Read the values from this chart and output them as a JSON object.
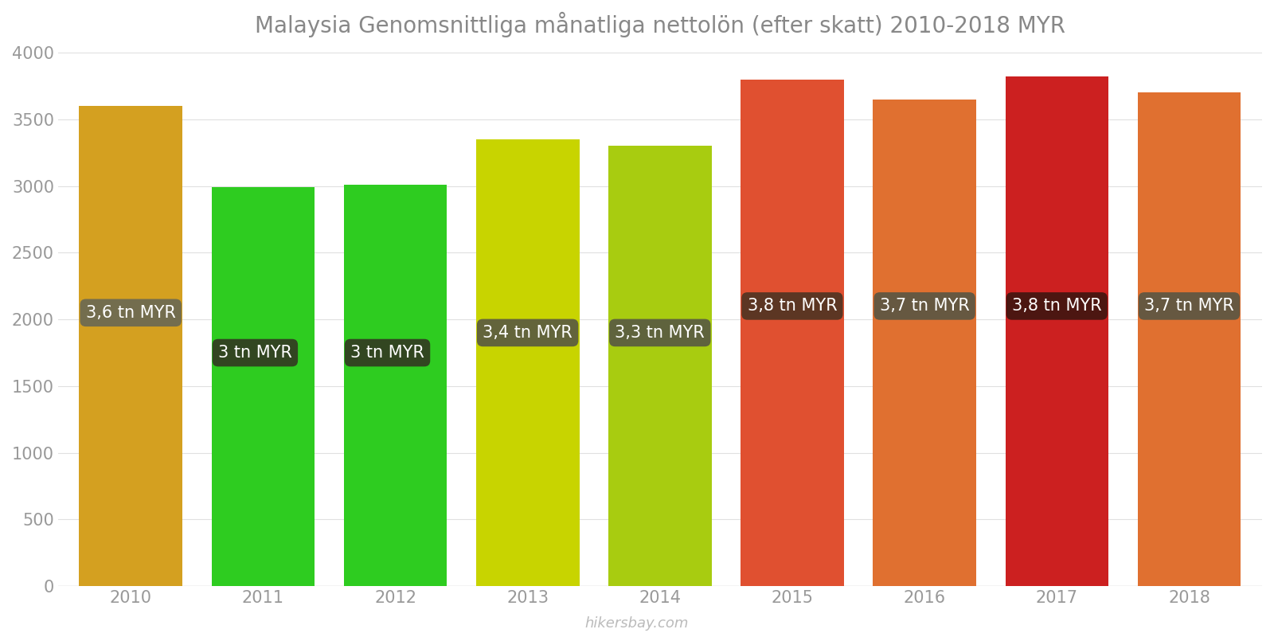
{
  "title": "Malaysia Genomsnittliga månatliga nettolön (efter skatt) 2010-2018 MYR",
  "years": [
    2010,
    2011,
    2012,
    2013,
    2014,
    2015,
    2016,
    2017,
    2018
  ],
  "values": [
    3600,
    2990,
    3010,
    3350,
    3300,
    3800,
    3650,
    3820,
    3700
  ],
  "labels": [
    "3,6 tn MYR",
    "3 tn MYR",
    "3 tn MYR",
    "3,4 tn MYR",
    "3,3 tn MYR",
    "3,8 tn MYR",
    "3,7 tn MYR",
    "3,8 tn MYR",
    "3,7 tn MYR"
  ],
  "bar_colors": [
    "#D4A020",
    "#2ECC20",
    "#2ECC20",
    "#C8D400",
    "#A8CC10",
    "#E05030",
    "#E07030",
    "#CC2020",
    "#E07030"
  ],
  "label_box_colors": [
    "#666655",
    "#333322",
    "#333322",
    "#555544",
    "#555544",
    "#4A3322",
    "#555544",
    "#3A1510",
    "#555544"
  ],
  "ylim": [
    0,
    4000
  ],
  "yticks": [
    0,
    500,
    1000,
    1500,
    2000,
    2500,
    3000,
    3500,
    4000
  ],
  "label_y_positions": [
    2050,
    1750,
    1750,
    1900,
    1900,
    2100,
    2100,
    2100,
    2100
  ],
  "watermark": "hikersbay.com",
  "background_color": "#ffffff",
  "label_text_color": "#ffffff",
  "title_color": "#888888",
  "tick_color": "#999999",
  "bar_width": 0.78,
  "title_fontsize": 20,
  "label_fontsize": 15,
  "tick_fontsize": 15
}
